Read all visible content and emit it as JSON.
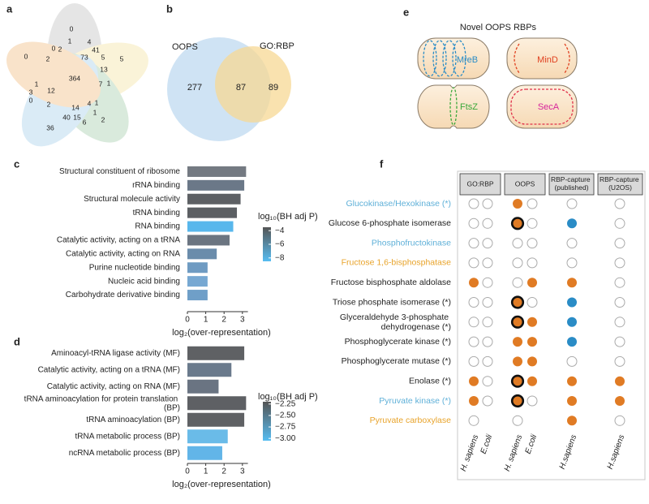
{
  "chart_data": [
    {
      "panel": "a",
      "type": "venn",
      "values": [
        0,
        1,
        4,
        0,
        2,
        73,
        41,
        5,
        5,
        0,
        2,
        13,
        364,
        1,
        7,
        1,
        3,
        12,
        0,
        2,
        14,
        4,
        1,
        1,
        40,
        15,
        6,
        2,
        36
      ]
    },
    {
      "panel": "b",
      "type": "venn",
      "sets": [
        "OOPS",
        "GO:RBP"
      ],
      "values": [
        277,
        87,
        89
      ],
      "colors": [
        "#cfe3f4",
        "#f7d894"
      ]
    },
    {
      "panel": "c",
      "type": "bar",
      "categories": [
        "Structural constituent of ribosome",
        "rRNA binding",
        "Structural molecule activity",
        "tRNA binding",
        "RNA binding",
        "Catalytic activity, acting on a tRNA",
        "Catalytic activity, acting on RNA",
        "Purine nucleotide binding",
        "Nucleic acid binding",
        "Carbohydrate derivative binding"
      ],
      "values": [
        3.2,
        3.1,
        2.9,
        2.7,
        2.5,
        2.3,
        1.6,
        1.1,
        1.1,
        1.1
      ],
      "colors": [
        "#747a82",
        "#6b7888",
        "#5d6064",
        "#5c5f63",
        "#58b7ec",
        "#6b7581",
        "#6a8cab",
        "#6f9bc2",
        "#77a8d2",
        "#6f9fc8"
      ],
      "xlim": [
        0,
        3.3
      ],
      "xticks": [
        0,
        1,
        2,
        3
      ],
      "xlabel": "log₂(over-representation)",
      "colorbar": {
        "label": "log₁₀(BH adj P)",
        "lim": [
          -8.5,
          -3.5
        ],
        "colors": [
          "#56bdf2",
          "#555555"
        ],
        "ticks": [
          {
            "value": -4,
            "label": "−4"
          },
          {
            "value": -6,
            "label": "−6"
          },
          {
            "value": -8,
            "label": "−8"
          }
        ]
      }
    },
    {
      "panel": "d",
      "type": "bar",
      "categories": [
        "Aminoacyl-tRNA ligase activity (MF)",
        "Catalytic activity, acting on a tRNA (MF)",
        "Catalytic activity, acting on RNA (MF)",
        "tRNA aminoacylation for protein translation (BP)",
        "tRNA aminoacylation (BP)",
        "tRNA metabolic process (BP)",
        "ncRNA metabolic process (BP)"
      ],
      "values": [
        3.1,
        2.4,
        1.7,
        3.2,
        3.1,
        2.2,
        1.9
      ],
      "colors": [
        "#5f6164",
        "#6a7a8c",
        "#6a7482",
        "#5e6064",
        "#5f6164",
        "#6abbe8",
        "#62b5e8"
      ],
      "xlim": [
        0,
        3.3
      ],
      "xticks": [
        0,
        1,
        2,
        3
      ],
      "xlabel": "log₂(over-representation)",
      "colorbar": {
        "label": "log₁₀(BH adj P)",
        "lim": [
          -3.05,
          -2.2
        ],
        "colors": [
          "#56bdf2",
          "#555555"
        ],
        "ticks": [
          {
            "value": -2.25,
            "label": "−2.25"
          },
          {
            "value": -2.5,
            "label": "−2.50"
          },
          {
            "value": -2.75,
            "label": "−2.75"
          },
          {
            "value": -3,
            "label": "−3.00"
          }
        ]
      }
    },
    {
      "panel": "e",
      "type": "diagram",
      "title": "Novel OOPS RBPs",
      "labels": [
        "MreB",
        "MinD",
        "FtsZ",
        "SecA"
      ],
      "colors": [
        "#2a8cc6",
        "#e0401f",
        "#3aa83a",
        "#d6249c"
      ]
    },
    {
      "panel": "f",
      "type": "dot_matrix",
      "categories": [
        "Glucokinase/Hexokinase (*)",
        "Glucose 6-phosphate isomerase",
        "Phosphofructokinase",
        "Fructose 1,6-bisphosphatase",
        "Fructose bisphosphate aldolase",
        "Triose phosphate isomerase (*)",
        "Glyceraldehyde 3-phosphate dehydrogenase (*)",
        "Phosphoglycerate kinase (*)",
        "Phosphoglycerate mutase (*)",
        "Enolase (*)",
        "Pyruvate kinase (*)",
        "Pyruvate carboxylase"
      ],
      "category_colors": [
        "#5fb0d8",
        "#222222",
        "#5fb0d8",
        "#e8a32a",
        "#222222",
        "#222222",
        "#222222",
        "#222222",
        "#222222",
        "#222222",
        "#5fb0d8",
        "#e8a32a"
      ],
      "groups": [
        {
          "name": "GO:RBP",
          "series": [
            {
              "name": "H. sapiens",
              "values": [
                0,
                0,
                0,
                0,
                1,
                0,
                0,
                0,
                0,
                1,
                1,
                0
              ],
              "colors": [
                "#ffffff",
                "#ffffff",
                "#ffffff",
                "#ffffff",
                "#e07b24",
                "#ffffff",
                "#ffffff",
                "#ffffff",
                "#ffffff",
                "#e07b24",
                "#e07b24",
                "#ffffff"
              ]
            },
            {
              "name": "E.coli",
              "values": [
                0,
                0,
                0,
                0,
                0,
                0,
                0,
                0,
                0,
                0,
                0,
                null
              ],
              "colors": [
                "#ffffff",
                "#ffffff",
                "#ffffff",
                "#ffffff",
                "#ffffff",
                "#ffffff",
                "#ffffff",
                "#ffffff",
                "#ffffff",
                "#ffffff",
                "#ffffff",
                null
              ]
            }
          ]
        },
        {
          "name": "OOPS",
          "series": [
            {
              "name": "H. sapiens",
              "values": [
                1,
                1,
                0,
                0,
                0,
                1,
                1,
                1,
                1,
                1,
                1,
                0
              ],
              "colors": [
                "#e07b24",
                "#e07b24",
                "#ffffff",
                "#ffffff",
                "#ffffff",
                "#e07b24",
                "#e07b24",
                "#e07b24",
                "#e07b24",
                "#e07b24",
                "#e07b24",
                "#ffffff"
              ],
              "outline": [
                false,
                true,
                false,
                false,
                false,
                true,
                true,
                false,
                false,
                true,
                true,
                false
              ]
            },
            {
              "name": "E.coli",
              "values": [
                0,
                0,
                0,
                0,
                1,
                0,
                1,
                1,
                1,
                1,
                0,
                null
              ],
              "colors": [
                "#ffffff",
                "#ffffff",
                "#ffffff",
                "#ffffff",
                "#e07b24",
                "#ffffff",
                "#e07b24",
                "#e07b24",
                "#e07b24",
                "#e07b24",
                "#ffffff",
                null
              ]
            }
          ]
        },
        {
          "name": "RBP-capture (published)",
          "series": [
            {
              "name": "H.sapiens",
              "values": [
                0,
                1,
                0,
                0,
                1,
                1,
                1,
                1,
                0,
                1,
                1,
                1
              ],
              "colors": [
                "#ffffff",
                "#2a8cc6",
                "#ffffff",
                "#ffffff",
                "#e07b24",
                "#2a8cc6",
                "#2a8cc6",
                "#2a8cc6",
                "#ffffff",
                "#e07b24",
                "#e07b24",
                "#e07b24"
              ]
            }
          ]
        },
        {
          "name": "RBP-capture (U2OS)",
          "series": [
            {
              "name": "H.sapiens",
              "values": [
                0,
                0,
                0,
                0,
                0,
                0,
                0,
                0,
                0,
                1,
                1,
                0
              ],
              "colors": [
                "#ffffff",
                "#ffffff",
                "#ffffff",
                "#ffffff",
                "#ffffff",
                "#ffffff",
                "#ffffff",
                "#ffffff",
                "#ffffff",
                "#e07b24",
                "#e07b24",
                "#ffffff"
              ]
            }
          ]
        }
      ]
    }
  ]
}
